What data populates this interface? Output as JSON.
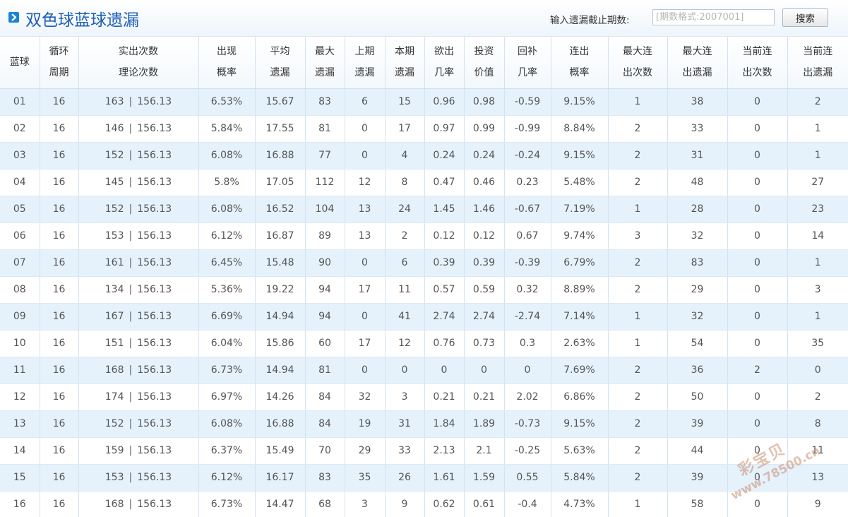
{
  "header": {
    "title": "双色球蓝球遗漏",
    "search_label": "输入遗漏截止期数:",
    "search_placeholder": "[期数格式:2007001]",
    "search_button": "搜索",
    "icon": "arrow-right-icon"
  },
  "table": {
    "headers": [
      {
        "line1": "蓝球",
        "line2": ""
      },
      {
        "line1": "循环",
        "line2": "周期"
      },
      {
        "line1": "实出次数",
        "line2": "理论次数"
      },
      {
        "line1": "出现",
        "line2": "概率"
      },
      {
        "line1": "平均",
        "line2": "遗漏"
      },
      {
        "line1": "最大",
        "line2": "遗漏"
      },
      {
        "line1": "上期",
        "line2": "遗漏"
      },
      {
        "line1": "本期",
        "line2": "遗漏"
      },
      {
        "line1": "欲出",
        "line2": "几率"
      },
      {
        "line1": "投资",
        "line2": "价值"
      },
      {
        "line1": "回补",
        "line2": "几率"
      },
      {
        "line1": "连出",
        "line2": "概率"
      },
      {
        "line1": "最大连",
        "line2": "出次数"
      },
      {
        "line1": "最大连",
        "line2": "出遗漏"
      },
      {
        "line1": "当前连",
        "line2": "出次数"
      },
      {
        "line1": "当前连",
        "line2": "出遗漏"
      }
    ],
    "separator": "|",
    "rows": [
      {
        "ball": "01",
        "cycle": "16",
        "actual": "163",
        "theory": "156.13",
        "prob": "6.53%",
        "avg": "15.67",
        "max": "83",
        "prev": "6",
        "cur": "15",
        "chance": "0.96",
        "invest": "0.98",
        "rebound": "-0.59",
        "streak_prob": "9.15%",
        "max_streak": "1",
        "max_streak_miss": "38",
        "cur_streak": "0",
        "cur_streak_miss": "2"
      },
      {
        "ball": "02",
        "cycle": "16",
        "actual": "146",
        "theory": "156.13",
        "prob": "5.84%",
        "avg": "17.55",
        "max": "81",
        "prev": "0",
        "cur": "17",
        "chance": "0.97",
        "invest": "0.99",
        "rebound": "-0.99",
        "streak_prob": "8.84%",
        "max_streak": "2",
        "max_streak_miss": "33",
        "cur_streak": "0",
        "cur_streak_miss": "1"
      },
      {
        "ball": "03",
        "cycle": "16",
        "actual": "152",
        "theory": "156.13",
        "prob": "6.08%",
        "avg": "16.88",
        "max": "77",
        "prev": "0",
        "cur": "4",
        "chance": "0.24",
        "invest": "0.24",
        "rebound": "-0.24",
        "streak_prob": "9.15%",
        "max_streak": "2",
        "max_streak_miss": "31",
        "cur_streak": "0",
        "cur_streak_miss": "1"
      },
      {
        "ball": "04",
        "cycle": "16",
        "actual": "145",
        "theory": "156.13",
        "prob": "5.8%",
        "avg": "17.05",
        "max": "112",
        "prev": "12",
        "cur": "8",
        "chance": "0.47",
        "invest": "0.46",
        "rebound": "0.23",
        "streak_prob": "5.48%",
        "max_streak": "2",
        "max_streak_miss": "48",
        "cur_streak": "0",
        "cur_streak_miss": "27"
      },
      {
        "ball": "05",
        "cycle": "16",
        "actual": "152",
        "theory": "156.13",
        "prob": "6.08%",
        "avg": "16.52",
        "max": "104",
        "prev": "13",
        "cur": "24",
        "chance": "1.45",
        "invest": "1.46",
        "rebound": "-0.67",
        "streak_prob": "7.19%",
        "max_streak": "1",
        "max_streak_miss": "28",
        "cur_streak": "0",
        "cur_streak_miss": "23"
      },
      {
        "ball": "06",
        "cycle": "16",
        "actual": "153",
        "theory": "156.13",
        "prob": "6.12%",
        "avg": "16.87",
        "max": "89",
        "prev": "13",
        "cur": "2",
        "chance": "0.12",
        "invest": "0.12",
        "rebound": "0.67",
        "streak_prob": "9.74%",
        "max_streak": "3",
        "max_streak_miss": "32",
        "cur_streak": "0",
        "cur_streak_miss": "14"
      },
      {
        "ball": "07",
        "cycle": "16",
        "actual": "161",
        "theory": "156.13",
        "prob": "6.45%",
        "avg": "15.48",
        "max": "90",
        "prev": "0",
        "cur": "6",
        "chance": "0.39",
        "invest": "0.39",
        "rebound": "-0.39",
        "streak_prob": "6.79%",
        "max_streak": "2",
        "max_streak_miss": "83",
        "cur_streak": "0",
        "cur_streak_miss": "1"
      },
      {
        "ball": "08",
        "cycle": "16",
        "actual": "134",
        "theory": "156.13",
        "prob": "5.36%",
        "avg": "19.22",
        "max": "94",
        "prev": "17",
        "cur": "11",
        "chance": "0.57",
        "invest": "0.59",
        "rebound": "0.32",
        "streak_prob": "8.89%",
        "max_streak": "2",
        "max_streak_miss": "29",
        "cur_streak": "0",
        "cur_streak_miss": "3"
      },
      {
        "ball": "09",
        "cycle": "16",
        "actual": "167",
        "theory": "156.13",
        "prob": "6.69%",
        "avg": "14.94",
        "max": "94",
        "prev": "0",
        "cur": "41",
        "chance": "2.74",
        "invest": "2.74",
        "rebound": "-2.74",
        "streak_prob": "7.14%",
        "max_streak": "1",
        "max_streak_miss": "32",
        "cur_streak": "0",
        "cur_streak_miss": "1"
      },
      {
        "ball": "10",
        "cycle": "16",
        "actual": "151",
        "theory": "156.13",
        "prob": "6.04%",
        "avg": "15.86",
        "max": "60",
        "prev": "17",
        "cur": "12",
        "chance": "0.76",
        "invest": "0.73",
        "rebound": "0.3",
        "streak_prob": "2.63%",
        "max_streak": "1",
        "max_streak_miss": "54",
        "cur_streak": "0",
        "cur_streak_miss": "35"
      },
      {
        "ball": "11",
        "cycle": "16",
        "actual": "168",
        "theory": "156.13",
        "prob": "6.73%",
        "avg": "14.94",
        "max": "81",
        "prev": "0",
        "cur": "0",
        "chance": "0",
        "invest": "0",
        "rebound": "0",
        "streak_prob": "7.69%",
        "max_streak": "2",
        "max_streak_miss": "36",
        "cur_streak": "2",
        "cur_streak_miss": "0"
      },
      {
        "ball": "12",
        "cycle": "16",
        "actual": "174",
        "theory": "156.13",
        "prob": "6.97%",
        "avg": "14.26",
        "max": "84",
        "prev": "32",
        "cur": "3",
        "chance": "0.21",
        "invest": "0.21",
        "rebound": "2.02",
        "streak_prob": "6.86%",
        "max_streak": "2",
        "max_streak_miss": "50",
        "cur_streak": "0",
        "cur_streak_miss": "2"
      },
      {
        "ball": "13",
        "cycle": "16",
        "actual": "152",
        "theory": "156.13",
        "prob": "6.08%",
        "avg": "16.88",
        "max": "84",
        "prev": "19",
        "cur": "31",
        "chance": "1.84",
        "invest": "1.89",
        "rebound": "-0.73",
        "streak_prob": "9.15%",
        "max_streak": "2",
        "max_streak_miss": "39",
        "cur_streak": "0",
        "cur_streak_miss": "8"
      },
      {
        "ball": "14",
        "cycle": "16",
        "actual": "159",
        "theory": "156.13",
        "prob": "6.37%",
        "avg": "15.49",
        "max": "70",
        "prev": "29",
        "cur": "33",
        "chance": "2.13",
        "invest": "2.1",
        "rebound": "-0.25",
        "streak_prob": "5.63%",
        "max_streak": "2",
        "max_streak_miss": "44",
        "cur_streak": "0",
        "cur_streak_miss": "11"
      },
      {
        "ball": "15",
        "cycle": "16",
        "actual": "153",
        "theory": "156.13",
        "prob": "6.12%",
        "avg": "16.17",
        "max": "83",
        "prev": "35",
        "cur": "26",
        "chance": "1.61",
        "invest": "1.59",
        "rebound": "0.55",
        "streak_prob": "5.84%",
        "max_streak": "2",
        "max_streak_miss": "39",
        "cur_streak": "0",
        "cur_streak_miss": "13"
      },
      {
        "ball": "16",
        "cycle": "16",
        "actual": "168",
        "theory": "156.13",
        "prob": "6.73%",
        "avg": "14.47",
        "max": "68",
        "prev": "3",
        "cur": "9",
        "chance": "0.62",
        "invest": "0.61",
        "rebound": "-0.4",
        "streak_prob": "4.73%",
        "max_streak": "1",
        "max_streak_miss": "58",
        "cur_streak": "0",
        "cur_streak_miss": "9"
      }
    ]
  },
  "watermark": {
    "line1": "彩宝贝",
    "line2": "www.78500.cn"
  }
}
